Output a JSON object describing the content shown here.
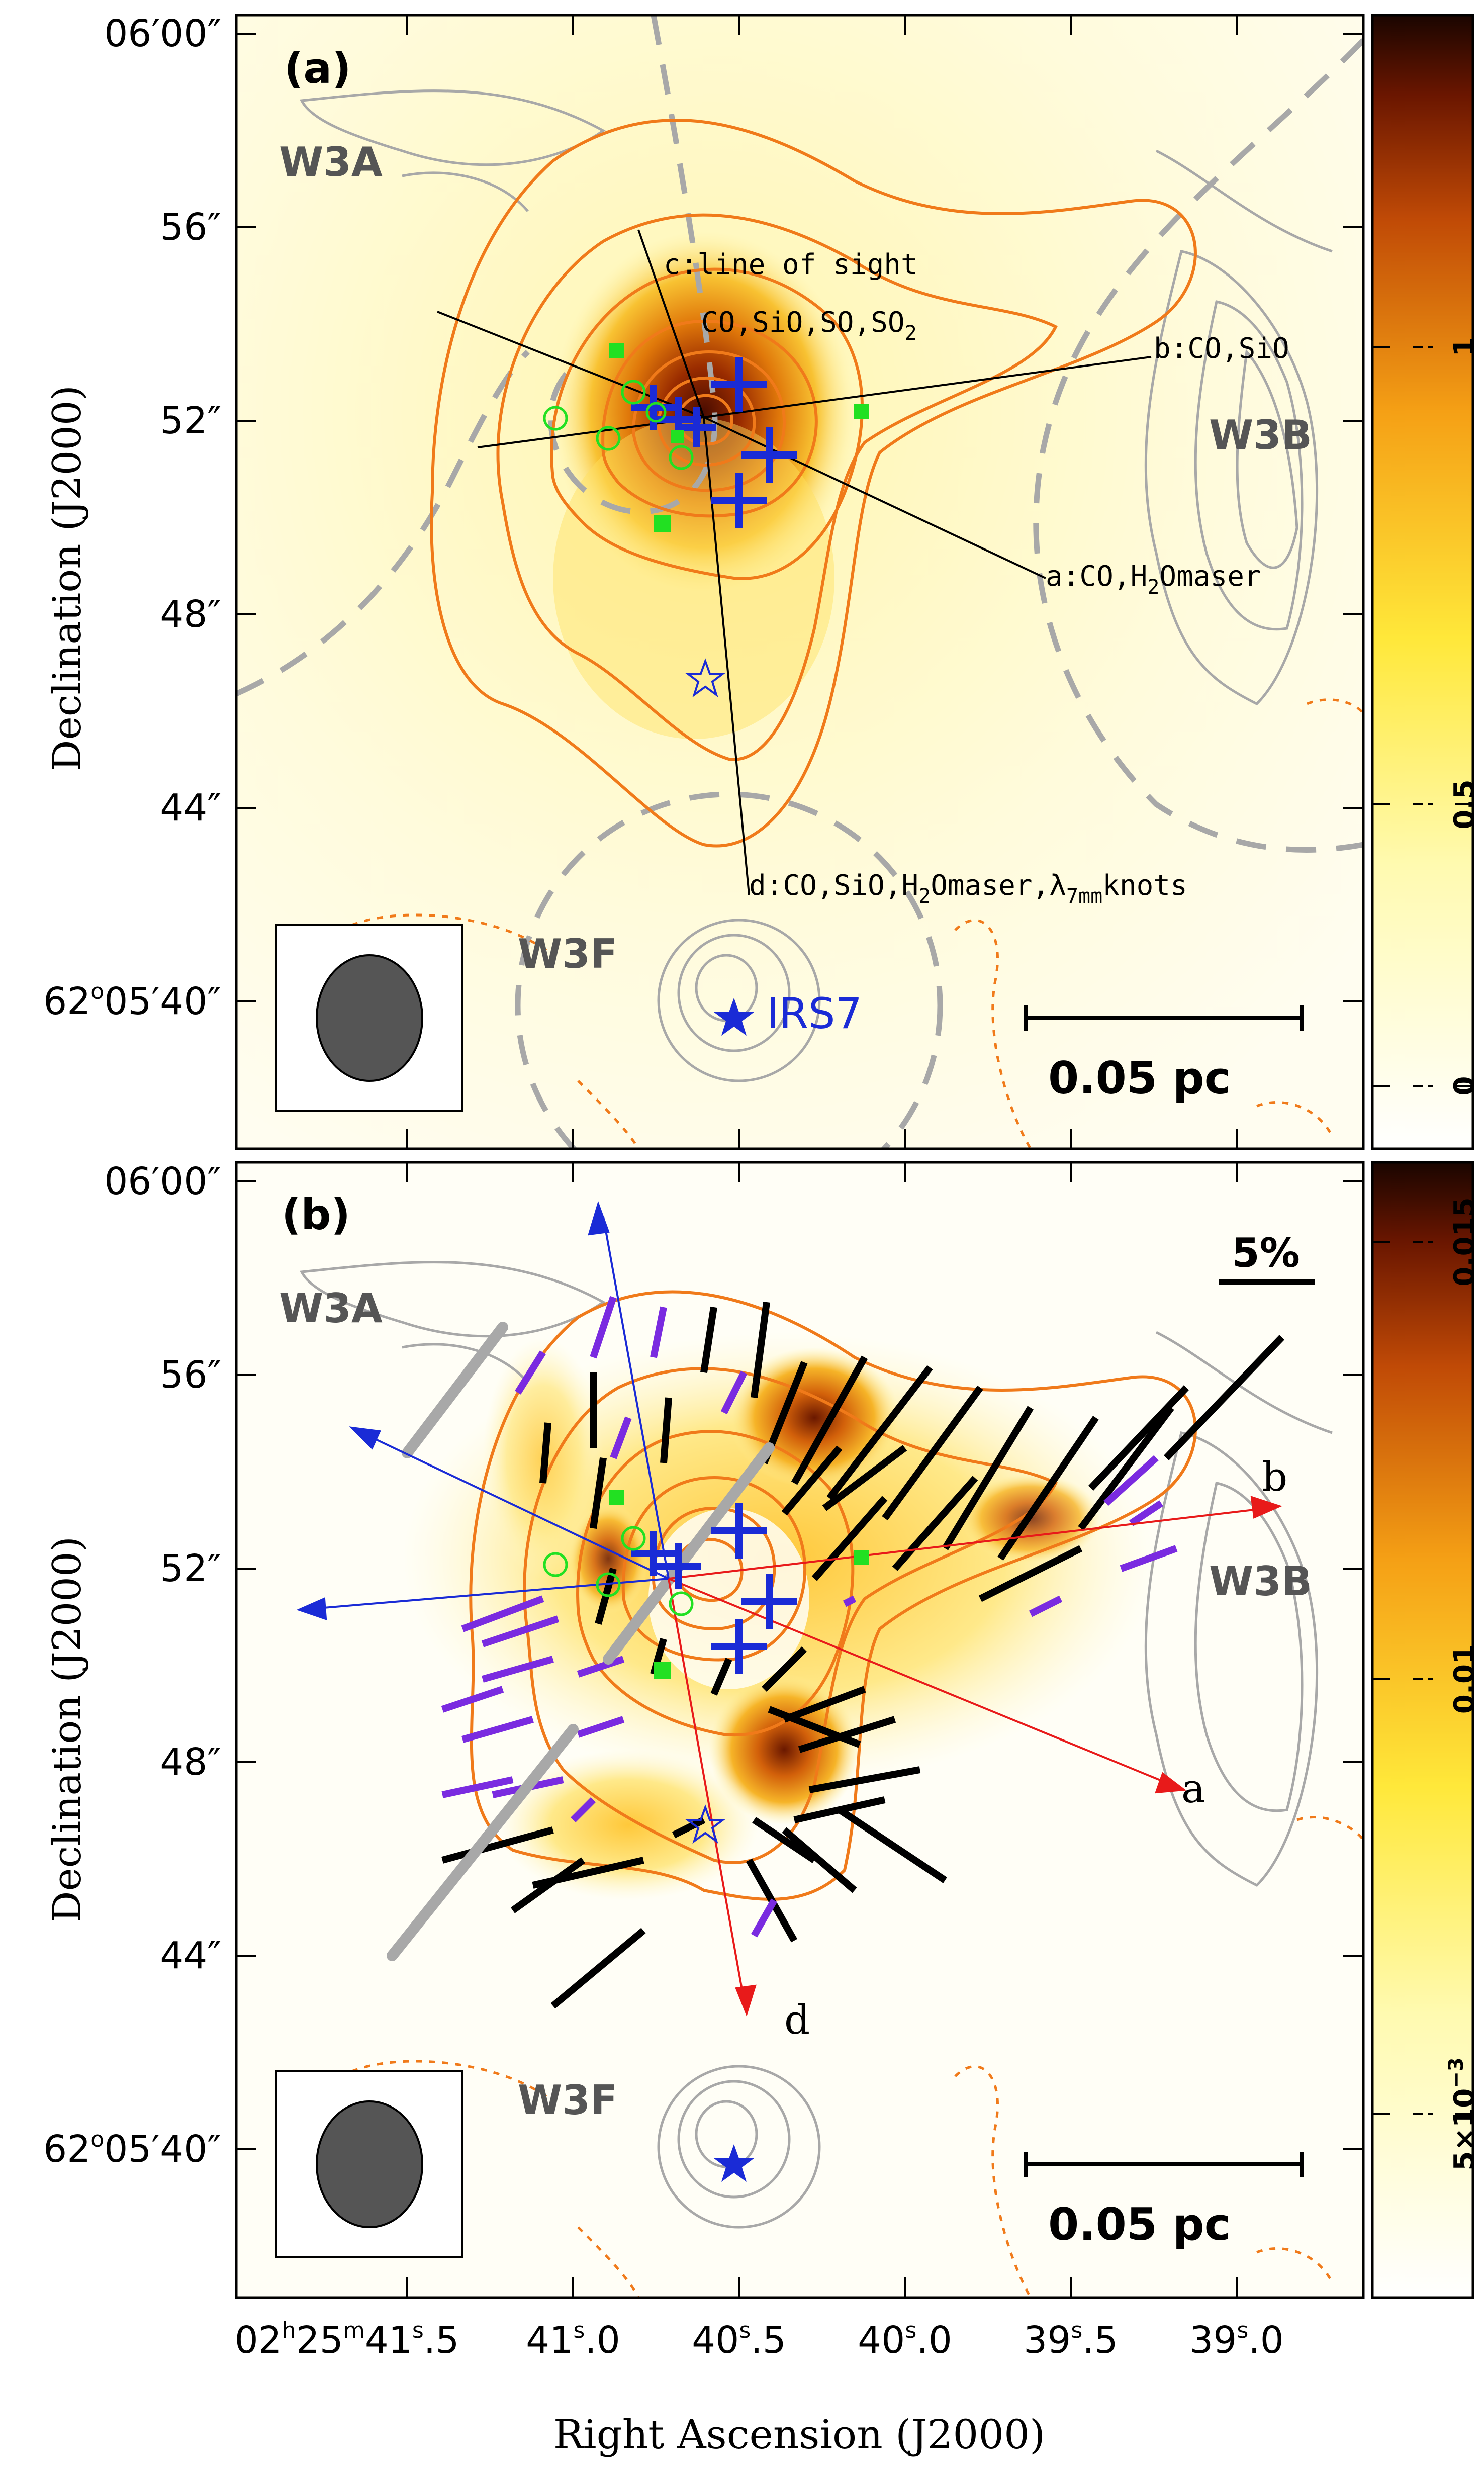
{
  "figure": {
    "x_axis_label": "Right Ascension (J2000)",
    "y_axis_label": "Declination (J2000)",
    "x_tick_labels": [
      {
        "main": "02",
        "sup1": "h",
        "mid": "25",
        "sup2": "m",
        "sec": "41",
        "sup3": "s",
        "frac": ".5"
      },
      {
        "sec": "41",
        "sup3": "s",
        "frac": ".0"
      },
      {
        "sec": "40",
        "sup3": "s",
        "frac": ".5"
      },
      {
        "sec": "40",
        "sup3": "s",
        "frac": ".0"
      },
      {
        "sec": "39",
        "sup3": "s",
        "frac": ".5"
      },
      {
        "sec": "39",
        "sup3": "s",
        "frac": ".0"
      }
    ],
    "y_tick_labels_top": [
      "06′00″",
      "56″",
      "52″",
      "48″",
      "44″"
    ],
    "y_tick_labels_bottom": [
      "06′00″",
      "56″",
      "52″",
      "48″",
      "44″"
    ],
    "y_tick_special": {
      "deg": "62",
      "o": "o",
      "rest": "05′40″"
    }
  },
  "panel_a": {
    "label": "(a)",
    "regions": [
      "W3A",
      "W3B",
      "W3F"
    ],
    "source_label": "IRS7",
    "scalebar": "0.05 pc",
    "outflows": [
      {
        "id": "a",
        "text": "a:CO,H",
        "sub": "2",
        "text2": "Omaser"
      },
      {
        "id": "b",
        "text": "b:CO,SiO"
      },
      {
        "id": "c1",
        "text": "c:line of sight"
      },
      {
        "id": "c2",
        "text": "CO,SiO,SO,SO",
        "sub": "2"
      },
      {
        "id": "d",
        "text": "d:CO,SiO,H",
        "sub": "2",
        "text2": "Omaser,λ",
        "sub2": "7mm",
        "text3": "knots"
      }
    ],
    "colorbar_ticks": [
      "1",
      "0.5",
      "0"
    ]
  },
  "panel_b": {
    "label": "(b)",
    "regions": [
      "W3A",
      "W3B",
      "W3F"
    ],
    "scalebar": "0.05 pc",
    "vector_scale": "5%",
    "arrow_labels": [
      "a",
      "b",
      "d"
    ],
    "colorbar_ticks": [
      "0.015",
      "0.01"
    ],
    "colorbar_tick_sci": {
      "mant": "5×10",
      "exp": "−3"
    }
  },
  "colors": {
    "orange_contour": "#f07a1a",
    "gray_contour": "#a8a8a8",
    "blue_marker": "#1a2bd6",
    "green_marker": "#22e022",
    "purple_vector": "#7a2be0",
    "red_arrow": "#e81a1a"
  }
}
